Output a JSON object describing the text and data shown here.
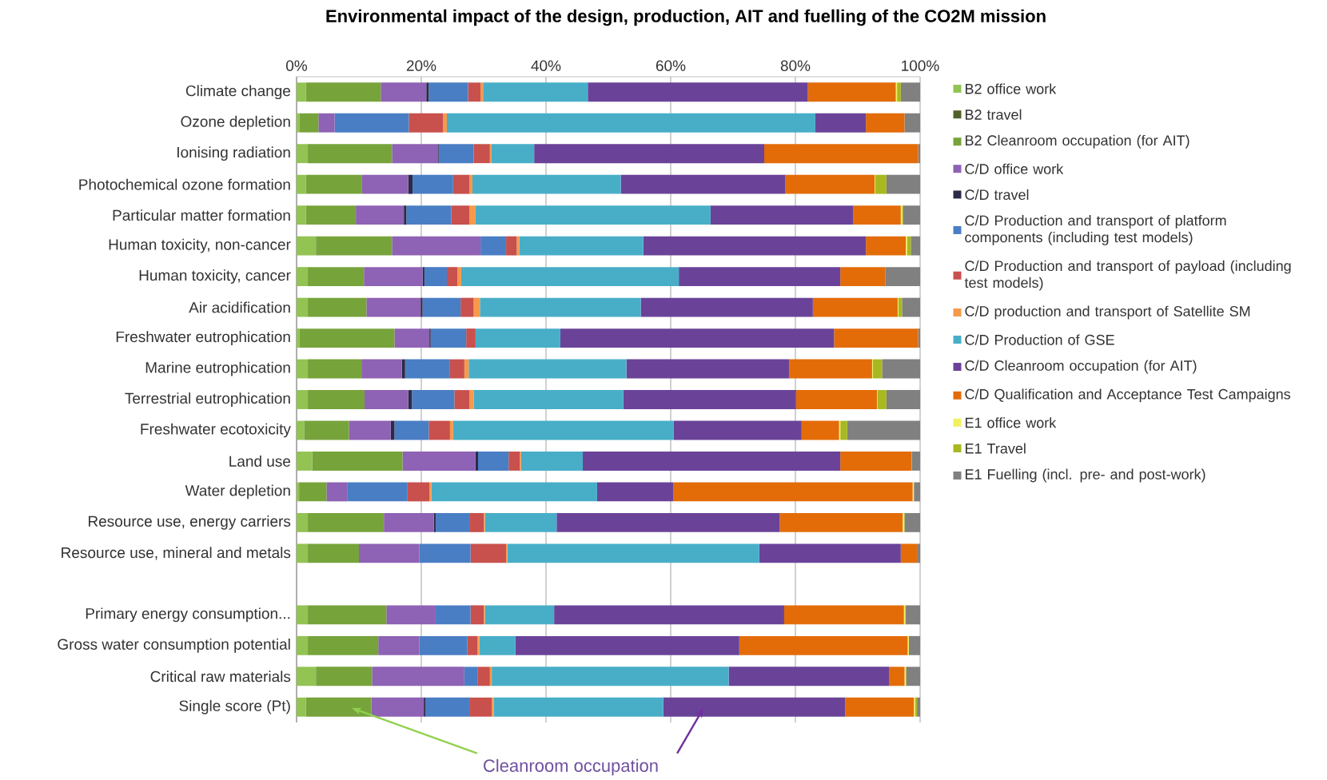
{
  "chart_data": {
    "type": "bar",
    "orientation": "horizontal",
    "stacked": true,
    "title": "Environmental impact of the design, production, AIT and fuelling of the CO2M mission",
    "categories": [
      "Climate change",
      "Ozone depletion",
      "Ionising radiation",
      "Photochemical ozone formation",
      "Particular matter formation",
      "Human toxicity, non-cancer",
      "Human toxicity, cancer",
      "Air acidification",
      "Freshwater eutrophication",
      "Marine eutrophication",
      "Terrestrial eutrophication",
      "Freshwater ecotoxicity",
      "Land use",
      "Water depletion",
      "Resource use, energy carriers",
      "Resource use, mineral and metals",
      null,
      "Primary energy consumption...",
      "Gross water consumption potential",
      "Critical raw materials",
      "Single score (Pt)"
    ],
    "series": [
      {
        "name": "B2 office work",
        "color": "#92c353",
        "values": [
          1.5,
          0.5,
          1.8,
          1.5,
          1.5,
          3.1,
          1.8,
          1.8,
          0.5,
          1.8,
          1.8,
          1.2,
          2.5,
          0.4,
          1.8,
          1.8,
          null,
          1.8,
          1.8,
          3.1,
          1.5
        ]
      },
      {
        "name": "B2 travel",
        "color": "#4f6228",
        "values": [
          0,
          0,
          0,
          0,
          0,
          0,
          0,
          0,
          0,
          0,
          0,
          0,
          0,
          0,
          0,
          0,
          null,
          0,
          0,
          0,
          0
        ]
      },
      {
        "name": "B2 Cleanroom occupation (for AIT)",
        "color": "#77a33b",
        "values": [
          12.0,
          3.0,
          13.5,
          9.0,
          8.0,
          12.2,
          9.0,
          9.4,
          15.2,
          8.6,
          9.1,
          7.2,
          14.5,
          4.4,
          12.2,
          8.2,
          null,
          12.6,
          11.3,
          9.0,
          10.5
        ]
      },
      {
        "name": "C/D office work",
        "color": "#8e62b4",
        "values": [
          7.3,
          2.6,
          7.4,
          7.4,
          7.7,
          14.2,
          9.4,
          8.7,
          5.6,
          6.5,
          7.0,
          6.7,
          11.7,
          3.3,
          8.0,
          9.7,
          null,
          7.9,
          6.6,
          14.8,
          8.4
        ]
      },
      {
        "name": "C/D travel",
        "color": "#2b2a4a",
        "values": [
          0.4,
          0,
          0.1,
          0.7,
          0.4,
          0,
          0.3,
          0.3,
          0.2,
          0.5,
          0.6,
          0.6,
          0.4,
          0,
          0.3,
          0,
          null,
          0,
          0,
          0,
          0.3
        ]
      },
      {
        "name": "C/D Production and transport of platform components (including test models)",
        "color": "#4a7ec4",
        "values": [
          6.3,
          11.9,
          5.6,
          6.5,
          7.2,
          4.1,
          3.6,
          6.1,
          5.7,
          7.2,
          6.8,
          5.5,
          4.9,
          9.7,
          5.4,
          8.2,
          null,
          5.6,
          7.7,
          2.1,
          7.0
        ]
      },
      {
        "name": "C/D Production and transport of payload (including test models)",
        "color": "#c8504d",
        "values": [
          2.0,
          5.5,
          2.6,
          2.6,
          2.9,
          1.7,
          1.7,
          2.1,
          1.5,
          2.3,
          2.4,
          3.4,
          1.8,
          3.5,
          2.3,
          5.7,
          null,
          2.1,
          1.6,
          2.0,
          3.6
        ]
      },
      {
        "name": "C/D production and transport of Satellite SM",
        "color": "#f5994a",
        "values": [
          0.4,
          0.6,
          0.2,
          0.5,
          1.0,
          0.4,
          0.6,
          1.0,
          0,
          0.7,
          0.7,
          0.5,
          0.2,
          0.3,
          0.2,
          0.2,
          null,
          0.2,
          0.3,
          0.3,
          0.3
        ]
      },
      {
        "name": "C/D Production of GSE",
        "color": "#48aec8",
        "values": [
          16.8,
          59.1,
          6.9,
          23.8,
          37.7,
          19.9,
          34.9,
          25.8,
          13.6,
          25.3,
          24.0,
          35.4,
          9.9,
          26.6,
          11.5,
          40.4,
          null,
          11.1,
          5.8,
          38.0,
          27.2
        ]
      },
      {
        "name": "C/D Cleanroom occupation (for AIT)",
        "color": "#6a4399",
        "values": [
          35.3,
          8.1,
          36.9,
          26.4,
          22.9,
          35.7,
          25.9,
          27.6,
          43.9,
          26.1,
          27.7,
          20.5,
          41.3,
          12.2,
          35.8,
          22.7,
          null,
          36.9,
          35.9,
          25.7,
          29.2
        ]
      },
      {
        "name": "C/D Qualification and Acceptance Test Campaigns",
        "color": "#e36c09",
        "values": [
          14.1,
          6.2,
          24.7,
          14.3,
          7.6,
          6.4,
          7.2,
          13.6,
          13.5,
          13.3,
          13.0,
          6.0,
          11.4,
          38.4,
          19.7,
          2.6,
          null,
          19.2,
          27.0,
          2.5,
          11.0
        ]
      },
      {
        "name": "E1 office work",
        "color": "#f0f060",
        "values": [
          0.2,
          0,
          0,
          0.1,
          0.2,
          0.2,
          0,
          0.1,
          0,
          0.1,
          0.1,
          0.2,
          0,
          0.2,
          0.2,
          0,
          null,
          0.2,
          0.2,
          0.2,
          0.2
        ]
      },
      {
        "name": "E1 Travel",
        "color": "#a8b820",
        "values": [
          0.6,
          0,
          0,
          1.8,
          0.2,
          0.6,
          0,
          0.6,
          0,
          1.5,
          1.4,
          1.1,
          0.1,
          0,
          0.1,
          0,
          null,
          0.1,
          0,
          0.1,
          0.3
        ]
      },
      {
        "name": "E1 Fuelling (incl. pre- and post-work)",
        "color": "#808080",
        "values": [
          3.1,
          2.5,
          0.3,
          5.4,
          2.7,
          1.5,
          5.6,
          2.9,
          0.3,
          6.1,
          5.4,
          11.7,
          1.3,
          1.0,
          2.5,
          0.5,
          null,
          2.3,
          1.8,
          2.2,
          0.5
        ]
      }
    ],
    "xlim": [
      0,
      100
    ],
    "xticks": [
      {
        "value": 0,
        "label": "0%"
      },
      {
        "value": 20,
        "label": "20%"
      },
      {
        "value": 40,
        "label": "40%"
      },
      {
        "value": 60,
        "label": "60%"
      },
      {
        "value": 80,
        "label": "80%"
      },
      {
        "value": 100,
        "label": "100%"
      }
    ],
    "grid": "x",
    "legend": "right",
    "annotations": [
      "Cleanroom occupation"
    ]
  }
}
